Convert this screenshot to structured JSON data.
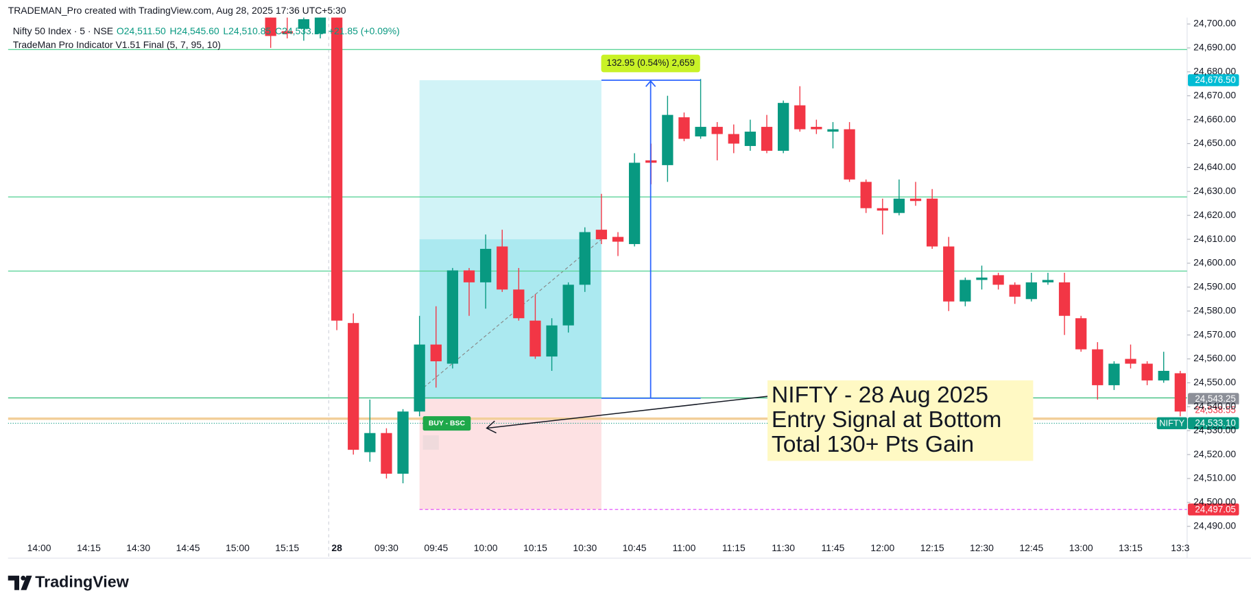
{
  "header": "TRADEMAN_Pro created with TradingView.com, Aug 28, 2025 17:36 UTC+5:30",
  "footer": "TradingView",
  "chart_data": {
    "type": "candlestick",
    "symbol": "Nifty 50 Index · 5 · NSE",
    "ohlc_legend": [
      "O24,511.50",
      "H24,545.60",
      "L24,510.85",
      "C24,533.10",
      "+21.85 (+0.09%)"
    ],
    "indicator": "TradeMan Pro Indicator V1.51 Final (5, 7, 95, 10)",
    "up_color": "#089981",
    "down_color": "#f23645",
    "categories": [
      "14:00",
      null,
      null,
      "14:15",
      null,
      null,
      "14:30",
      null,
      null,
      "14:45",
      null,
      null,
      "15:00",
      null,
      null,
      "15:15",
      null,
      null,
      "28",
      null,
      null,
      "09:30",
      null,
      null,
      "09:45",
      null,
      null,
      "10:00",
      null,
      null,
      "10:15",
      null,
      null,
      "10:30",
      null,
      null,
      "10:45",
      null,
      null,
      "11:00",
      null,
      null,
      "11:15",
      null,
      null,
      "11:30",
      null,
      null,
      "11:45",
      null,
      null,
      "12:00",
      null,
      null,
      "12:15",
      null,
      null,
      "12:30",
      null,
      null,
      "12:45",
      null,
      null,
      "13:00",
      null,
      null,
      "13:15",
      null,
      null,
      "13:3"
    ],
    "series": [
      {
        "name": "NIFTY",
        "open": [
          null,
          null,
          null,
          null,
          null,
          null,
          null,
          null,
          null,
          null,
          null,
          null,
          null,
          null,
          24705,
          24697,
          24698,
          24696,
          24705,
          24575,
          24521,
          24529,
          24512,
          24538,
          24566,
          24558,
          24597,
          24592,
          24607,
          24589,
          24576,
          24561,
          24574,
          24591,
          24614,
          24611,
          24608,
          24643,
          24641,
          24661,
          24653,
          24657,
          24654,
          24649,
          24657,
          24647,
          24666,
          24657,
          24655,
          24656,
          24634,
          24623,
          24621,
          24627,
          24627,
          24607,
          24584,
          24593,
          24595,
          24591,
          24585,
          24592,
          24592,
          24577,
          24564,
          24549,
          24560,
          24558,
          24551,
          24554
        ],
        "high": [
          null,
          null,
          null,
          null,
          null,
          null,
          null,
          null,
          null,
          null,
          null,
          null,
          null,
          null,
          24708,
          24705,
          24706,
          24706,
          24708,
          24579,
          24543,
          24531,
          24539,
          24578,
          24582,
          24598,
          24598,
          24612,
          24614,
          24598,
          24587,
          24577,
          24592,
          24615,
          24629,
          24613,
          24646,
          24650,
          24670,
          24663,
          24677,
          24659,
          24658,
          24660,
          24662,
          24668,
          24674,
          24660,
          24659,
          24659,
          24635,
          24627,
          24635,
          24634,
          24631,
          24611,
          24594,
          24599,
          24596,
          24592,
          24596,
          24596,
          24596,
          24578,
          24567,
          24559,
          24566,
          24559,
          24563,
          24555
        ],
        "low": [
          null,
          null,
          null,
          null,
          null,
          null,
          null,
          null,
          null,
          null,
          null,
          null,
          null,
          null,
          24690,
          24694,
          24693,
          24694,
          24572,
          24520,
          24517,
          24510,
          24508,
          24536,
          24548,
          24556,
          24578,
          24581,
          24588,
          24576,
          24560,
          24555,
          24571,
          24588,
          24608,
          24603,
          24607,
          24633,
          24634,
          24651,
          24652,
          24643,
          24646,
          24647,
          24646,
          24646,
          24655,
          24654,
          24648,
          24634,
          24621,
          24612,
          24620,
          24624,
          24606,
          24580,
          24582,
          24589,
          24589,
          24583,
          24584,
          24591,
          24570,
          24563,
          24543,
          24547,
          24556,
          24549,
          24550,
          24536
        ],
        "close": [
          null,
          null,
          null,
          null,
          null,
          null,
          null,
          null,
          null,
          null,
          null,
          null,
          null,
          null,
          24695,
          24696,
          24702,
          24703,
          24576,
          24522,
          24529,
          24512,
          24538,
          24566,
          24559,
          24597,
          24592,
          24606,
          24589,
          24577,
          24561,
          24574,
          24591,
          24613,
          24610,
          24609,
          24642,
          24642,
          24662,
          24652,
          24657,
          24654,
          24650,
          24655,
          24647,
          24667,
          24656,
          24656,
          24656,
          24635,
          24623,
          24622,
          24627,
          24626,
          24607,
          24584,
          24593,
          24594,
          24591,
          24586,
          24592,
          24593,
          24578,
          24564,
          24549,
          24558,
          24558,
          24551,
          24555,
          24538
        ]
      }
    ],
    "ylim": [
      24476.7,
      24702.7
    ],
    "yticks": [
      {
        "value": 24490,
        "label": "24,490.00"
      },
      {
        "value": 24500,
        "label": "24,500.00"
      },
      {
        "value": 24510,
        "label": "24,510.00"
      },
      {
        "value": 24520,
        "label": "24,520.00"
      },
      {
        "value": 24530,
        "label": "24,530.00"
      },
      {
        "value": 24540,
        "label": "24,540.00"
      },
      {
        "value": 24550,
        "label": "24,550.00"
      },
      {
        "value": 24560,
        "label": "24,560.00"
      },
      {
        "value": 24570,
        "label": "24,570.00"
      },
      {
        "value": 24580,
        "label": "24,580.00"
      },
      {
        "value": 24590,
        "label": "24,590.00"
      },
      {
        "value": 24600,
        "label": "24,600.00"
      },
      {
        "value": 24610,
        "label": "24,610.00"
      },
      {
        "value": 24620,
        "label": "24,620.00"
      },
      {
        "value": 24630,
        "label": "24,630.00"
      },
      {
        "value": 24640,
        "label": "24,640.00"
      },
      {
        "value": 24650,
        "label": "24,650.00"
      },
      {
        "value": 24660,
        "label": "24,660.00"
      },
      {
        "value": 24670,
        "label": "24,670.00"
      },
      {
        "value": 24680,
        "label": "24,680.00"
      },
      {
        "value": 24690,
        "label": "24,690.00"
      },
      {
        "value": 24700,
        "label": "24,700.00"
      }
    ],
    "levels": [
      {
        "value": 24689.3,
        "color": "#5ed49a"
      },
      {
        "value": 24627.7,
        "color": "#5ed49a"
      },
      {
        "value": 24596.7,
        "color": "#5ed49a"
      },
      {
        "value": 24543.7,
        "color": "#3cbf7e"
      },
      {
        "value": 24535,
        "color": "#f2cf9a"
      }
    ],
    "position": {
      "entry": 24543.25,
      "target": 24676.5,
      "stop": 24497.05,
      "reached": 24610
    },
    "measure": {
      "from": 24543.55,
      "to": 24676.5,
      "label": "132.95 (0.54%) 2,659"
    },
    "signal": "BUY -  BSC",
    "annotation": [
      "NIFTY - 28 Aug 2025",
      "Entry Signal at Bottom",
      "Total 130+ Pts Gain"
    ],
    "price_labels": [
      {
        "value": 24676.5,
        "label": "24,676.50",
        "color": "#00bcd4"
      },
      {
        "value": 24543.25,
        "label": "24,543.25",
        "color": "#8c8f98"
      },
      {
        "value": 24538.55,
        "label": "24,538.55",
        "color": "#ffffff"
      },
      {
        "value": 24533.1,
        "label": "24,533.10",
        "color": "#089981"
      },
      {
        "value": 24497.05,
        "label": "24,497.05",
        "color": "#f23645"
      }
    ],
    "current_label": "NIFTY"
  }
}
